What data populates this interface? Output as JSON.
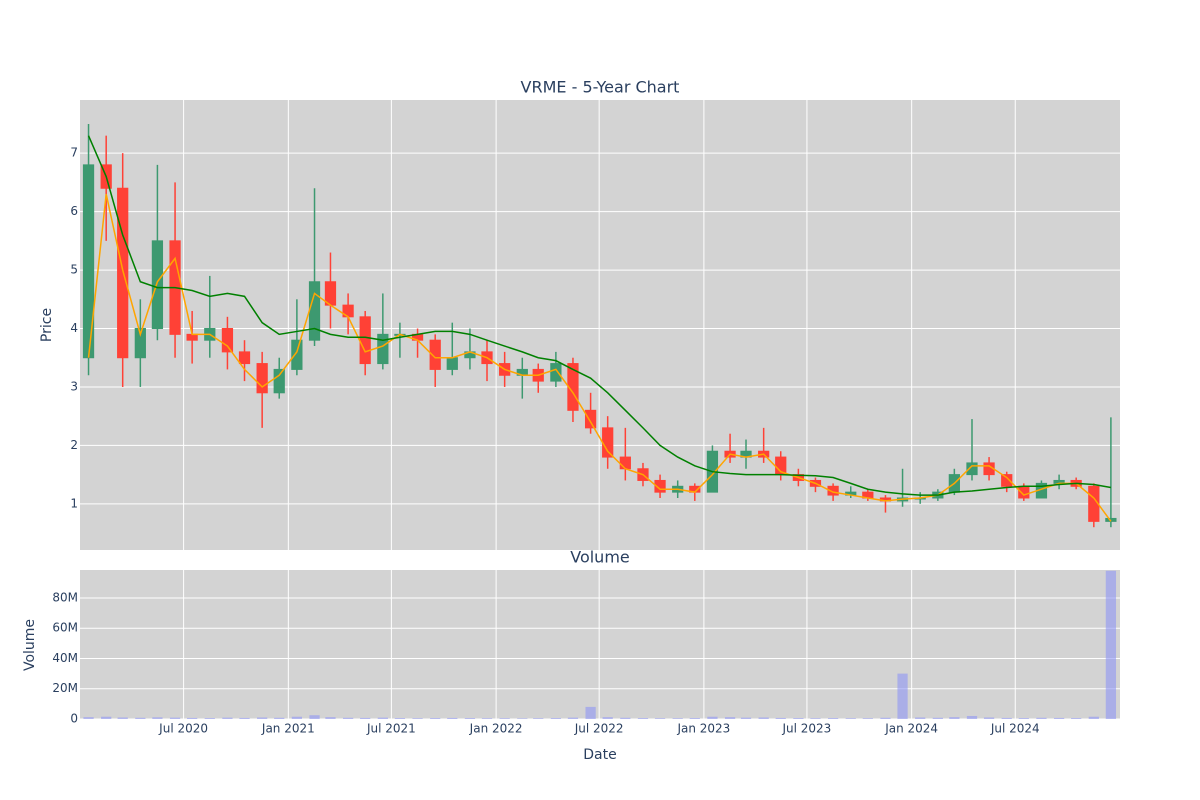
{
  "chart_data": {
    "type": "candlestick",
    "title": "VRME - 5-Year Chart",
    "ylabel": "Price",
    "xlabel": "Date",
    "x": [
      "2020-01",
      "2020-02",
      "2020-03",
      "2020-04",
      "2020-05",
      "2020-06",
      "2020-07",
      "2020-08",
      "2020-09",
      "2020-10",
      "2020-11",
      "2020-12",
      "2021-01",
      "2021-02",
      "2021-03",
      "2021-04",
      "2021-05",
      "2021-06",
      "2021-07",
      "2021-08",
      "2021-09",
      "2021-10",
      "2021-11",
      "2021-12",
      "2022-01",
      "2022-02",
      "2022-03",
      "2022-04",
      "2022-05",
      "2022-06",
      "2022-07",
      "2022-08",
      "2022-09",
      "2022-10",
      "2022-11",
      "2022-12",
      "2023-01",
      "2023-02",
      "2023-03",
      "2023-04",
      "2023-05",
      "2023-06",
      "2023-07",
      "2023-08",
      "2023-09",
      "2023-10",
      "2023-11",
      "2023-12",
      "2024-01",
      "2024-02",
      "2024-03",
      "2024-04",
      "2024-05",
      "2024-06",
      "2024-07",
      "2024-08",
      "2024-09",
      "2024-10",
      "2024-11",
      "2024-12"
    ],
    "open": [
      3.5,
      6.8,
      6.4,
      3.5,
      4.0,
      5.5,
      3.9,
      3.8,
      4.0,
      3.6,
      3.4,
      2.9,
      3.3,
      3.8,
      4.8,
      4.4,
      4.2,
      3.4,
      3.9,
      3.9,
      3.8,
      3.3,
      3.5,
      3.6,
      3.4,
      3.2,
      3.3,
      3.1,
      3.4,
      2.6,
      2.3,
      1.8,
      1.6,
      1.4,
      1.2,
      1.3,
      1.2,
      1.9,
      1.8,
      1.9,
      1.8,
      1.5,
      1.4,
      1.3,
      1.15,
      1.2,
      1.1,
      1.05,
      1.1,
      1.1,
      1.2,
      1.5,
      1.7,
      1.5,
      1.3,
      1.1,
      1.35,
      1.4,
      1.3,
      0.7
    ],
    "high": [
      7.5,
      7.3,
      7.0,
      4.5,
      6.8,
      6.5,
      4.3,
      4.9,
      4.2,
      3.8,
      3.6,
      3.5,
      4.5,
      6.4,
      5.3,
      4.6,
      4.3,
      4.6,
      4.1,
      4.0,
      3.9,
      4.1,
      4.0,
      3.8,
      3.6,
      3.5,
      3.4,
      3.6,
      3.5,
      2.9,
      2.5,
      2.3,
      1.7,
      1.5,
      1.4,
      1.35,
      2.0,
      2.2,
      2.1,
      2.3,
      1.9,
      1.6,
      1.45,
      1.35,
      1.3,
      1.25,
      1.15,
      1.6,
      1.2,
      1.25,
      1.6,
      2.45,
      1.8,
      1.55,
      1.35,
      1.4,
      1.5,
      1.45,
      1.35,
      2.48
    ],
    "low": [
      3.2,
      5.5,
      3.0,
      3.0,
      3.8,
      3.5,
      3.4,
      3.5,
      3.3,
      3.1,
      2.3,
      2.8,
      3.2,
      3.7,
      4.0,
      3.9,
      3.2,
      3.3,
      3.5,
      3.5,
      3.0,
      3.2,
      3.3,
      3.1,
      3.0,
      2.8,
      2.9,
      3.0,
      2.4,
      2.2,
      1.6,
      1.4,
      1.3,
      1.1,
      1.1,
      1.05,
      1.2,
      1.7,
      1.6,
      1.7,
      1.4,
      1.3,
      1.2,
      1.05,
      1.1,
      1.05,
      0.85,
      0.95,
      1.0,
      1.05,
      1.15,
      1.4,
      1.4,
      1.2,
      1.05,
      1.1,
      1.25,
      1.25,
      0.6,
      0.6
    ],
    "close": [
      6.8,
      6.4,
      3.5,
      4.0,
      5.5,
      3.9,
      3.8,
      4.0,
      3.6,
      3.4,
      2.9,
      3.3,
      3.8,
      4.8,
      4.4,
      4.2,
      3.4,
      3.9,
      3.9,
      3.8,
      3.3,
      3.5,
      3.6,
      3.4,
      3.2,
      3.3,
      3.1,
      3.4,
      2.6,
      2.3,
      1.8,
      1.6,
      1.4,
      1.2,
      1.3,
      1.2,
      1.9,
      1.8,
      1.9,
      1.8,
      1.5,
      1.4,
      1.3,
      1.15,
      1.2,
      1.1,
      1.05,
      1.1,
      1.1,
      1.2,
      1.5,
      1.7,
      1.5,
      1.3,
      1.1,
      1.35,
      1.4,
      1.3,
      0.7,
      0.75
    ],
    "increasing_color": "#3d9970",
    "decreasing_color": "#ff4136",
    "series": [
      {
        "color": "#ffa500",
        "values": [
          3.5,
          6.3,
          5.0,
          3.9,
          4.8,
          5.2,
          3.9,
          3.9,
          3.7,
          3.3,
          3.0,
          3.2,
          3.6,
          4.6,
          4.4,
          4.2,
          3.6,
          3.7,
          3.9,
          3.8,
          3.5,
          3.5,
          3.6,
          3.5,
          3.3,
          3.2,
          3.2,
          3.3,
          2.9,
          2.4,
          1.9,
          1.6,
          1.5,
          1.25,
          1.25,
          1.2,
          1.5,
          1.85,
          1.8,
          1.85,
          1.55,
          1.45,
          1.35,
          1.2,
          1.15,
          1.1,
          1.05,
          1.08,
          1.1,
          1.15,
          1.35,
          1.65,
          1.65,
          1.45,
          1.15,
          1.25,
          1.35,
          1.35,
          1.1,
          0.7
        ]
      },
      {
        "color": "#008000",
        "values": [
          7.3,
          6.6,
          5.6,
          4.8,
          4.7,
          4.7,
          4.65,
          4.55,
          4.6,
          4.55,
          4.1,
          3.9,
          3.95,
          4.0,
          3.9,
          3.85,
          3.85,
          3.8,
          3.85,
          3.9,
          3.95,
          3.95,
          3.9,
          3.8,
          3.7,
          3.6,
          3.5,
          3.45,
          3.3,
          3.15,
          2.9,
          2.6,
          2.3,
          2.0,
          1.8,
          1.65,
          1.55,
          1.52,
          1.5,
          1.5,
          1.5,
          1.49,
          1.48,
          1.45,
          1.35,
          1.25,
          1.2,
          1.17,
          1.15,
          1.15,
          1.2,
          1.22,
          1.25,
          1.28,
          1.3,
          1.3,
          1.33,
          1.35,
          1.33,
          1.28
        ]
      }
    ],
    "xlim": [
      "2020-01",
      "2025-01"
    ],
    "xticks": [
      {
        "value": "2020-07",
        "label": "Jul 2020"
      },
      {
        "value": "2021-01",
        "label": "Jan 2021"
      },
      {
        "value": "2021-07",
        "label": "Jul 2021"
      },
      {
        "value": "2022-01",
        "label": "Jan 2022"
      },
      {
        "value": "2022-07",
        "label": "Jul 2022"
      },
      {
        "value": "2023-01",
        "label": "Jan 2023"
      },
      {
        "value": "2023-07",
        "label": "Jul 2023"
      },
      {
        "value": "2024-01",
        "label": "Jan 2024"
      },
      {
        "value": "2024-07",
        "label": "Jul 2024"
      }
    ],
    "ylim": [
      0.21,
      7.91
    ],
    "yticks": [
      1,
      2,
      3,
      4,
      5,
      6,
      7
    ],
    "grid": true,
    "volume": {
      "title": "Volume",
      "ylabel": "Volume",
      "color": "#8f96f5",
      "values": [
        1200000,
        1500000,
        1000000,
        800000,
        1100000,
        900000,
        700000,
        600000,
        900000,
        700000,
        1000000,
        800000,
        1500000,
        2500000,
        1200000,
        800000,
        700000,
        900000,
        600000,
        500000,
        600000,
        700000,
        600000,
        500000,
        500000,
        400000,
        500000,
        600000,
        900000,
        8000000,
        1200000,
        800000,
        600000,
        500000,
        500000,
        600000,
        1500000,
        1200000,
        900000,
        1000000,
        700000,
        600000,
        500000,
        600000,
        500000,
        500000,
        800000,
        30000000,
        1000000,
        800000,
        1200000,
        2000000,
        1000000,
        700000,
        600000,
        800000,
        700000,
        600000,
        1500000,
        98000000
      ],
      "ylim": [
        0,
        98500000
      ],
      "yticks": [
        0,
        {
          "value": 20000000,
          "label": "20M"
        },
        {
          "value": 40000000,
          "label": "40M"
        },
        {
          "value": 60000000,
          "label": "60M"
        },
        {
          "value": 80000000,
          "label": "80M"
        }
      ]
    }
  }
}
